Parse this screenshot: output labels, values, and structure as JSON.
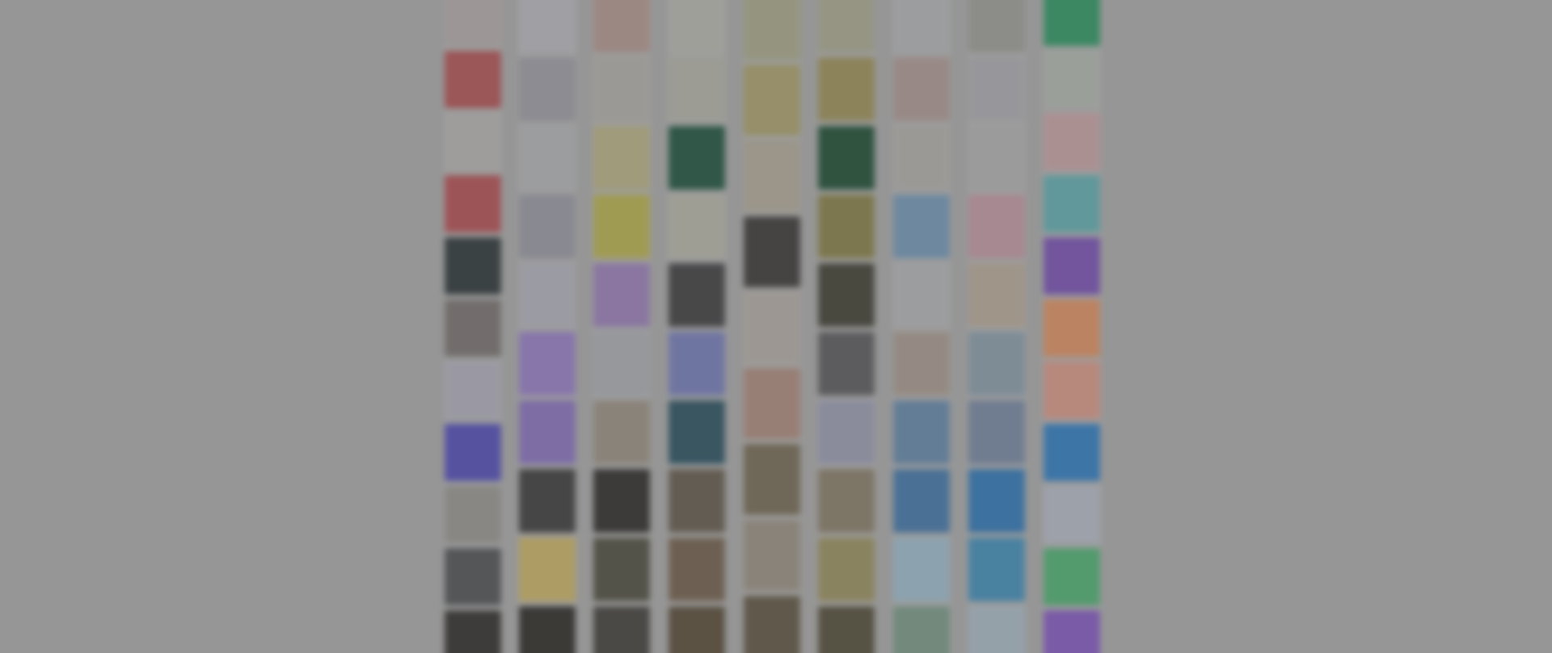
{
  "screen": {
    "background": "#9b9b9b",
    "description_state": "blurred-mosaic-backdrop"
  },
  "mosaic": {
    "columns": [
      {
        "tiles": [
          "#a39c9c",
          "#a24d4f",
          "#a6a3a3",
          "#a44b4f",
          "#2d3537",
          "#6f6a68",
          "#a09fab",
          "#4d49a8",
          "#8a8984",
          "#4b4e4f",
          "#2f2e2c"
        ]
      },
      {
        "tiles": [
          "#a7a7ad",
          "#8f8f96",
          "#a3a4a6",
          "#8b8c95",
          "#a2a2ab",
          "#8a74b5",
          "#7d69ad",
          "#3b3a3a",
          "#b8a35e",
          "#2d2b28"
        ]
      },
      {
        "tiles": [
          "#a38a84",
          "#a29f9a",
          "#a8a27a",
          "#a8a24a",
          "#8d75a8",
          "#9b9ea3",
          "#8d8479",
          "#2e2c2a",
          "#4b4a3e",
          "#403d3a"
        ]
      },
      {
        "tiles": [
          "#a6a6a0",
          "#a3a39a",
          "#1f4f3c",
          "#a6a59a",
          "#3d3c3e",
          "#6c73a9",
          "#2a4d5b",
          "#5d5549",
          "#6a5a49",
          "#534838"
        ]
      },
      {
        "tiles": [
          "#9a9a7f",
          "#9b9364",
          "#a19b8c",
          "#3a3836",
          "#a39d97",
          "#9d7f73",
          "#6c624f",
          "#8d8478",
          "#5a5140"
        ]
      },
      {
        "tiles": [
          "#9b9a86",
          "#8f8453",
          "#1f4a33",
          "#7d7645",
          "#3e3d33",
          "#555558",
          "#8d8fa3",
          "#7d7360",
          "#8d8459",
          "#4e4837"
        ]
      },
      {
        "tiles": [
          "#a3a4a6",
          "#9e8c88",
          "#a19f9c",
          "#6b8ba7",
          "#a3a4a6",
          "#9a8d84",
          "#5e7d9c",
          "#3f6e9a",
          "#8faab9",
          "#6f8c7c"
        ]
      },
      {
        "tiles": [
          "#8f8f8a",
          "#9d9da2",
          "#a2a2a3",
          "#b08b96",
          "#a69b8c",
          "#7e8f9c",
          "#6d7c94",
          "#2f6ea6",
          "#3e82a9",
          "#9aa9b3"
        ]
      },
      {
        "tiles": [
          "#2e8a5d",
          "#a2a6a0",
          "#b59497",
          "#5b9ea1",
          "#6f4ca4",
          "#c9845b",
          "#c48b7d",
          "#2f73b0",
          "#a4a9b3",
          "#4aa06a",
          "#7953b0"
        ]
      }
    ]
  }
}
